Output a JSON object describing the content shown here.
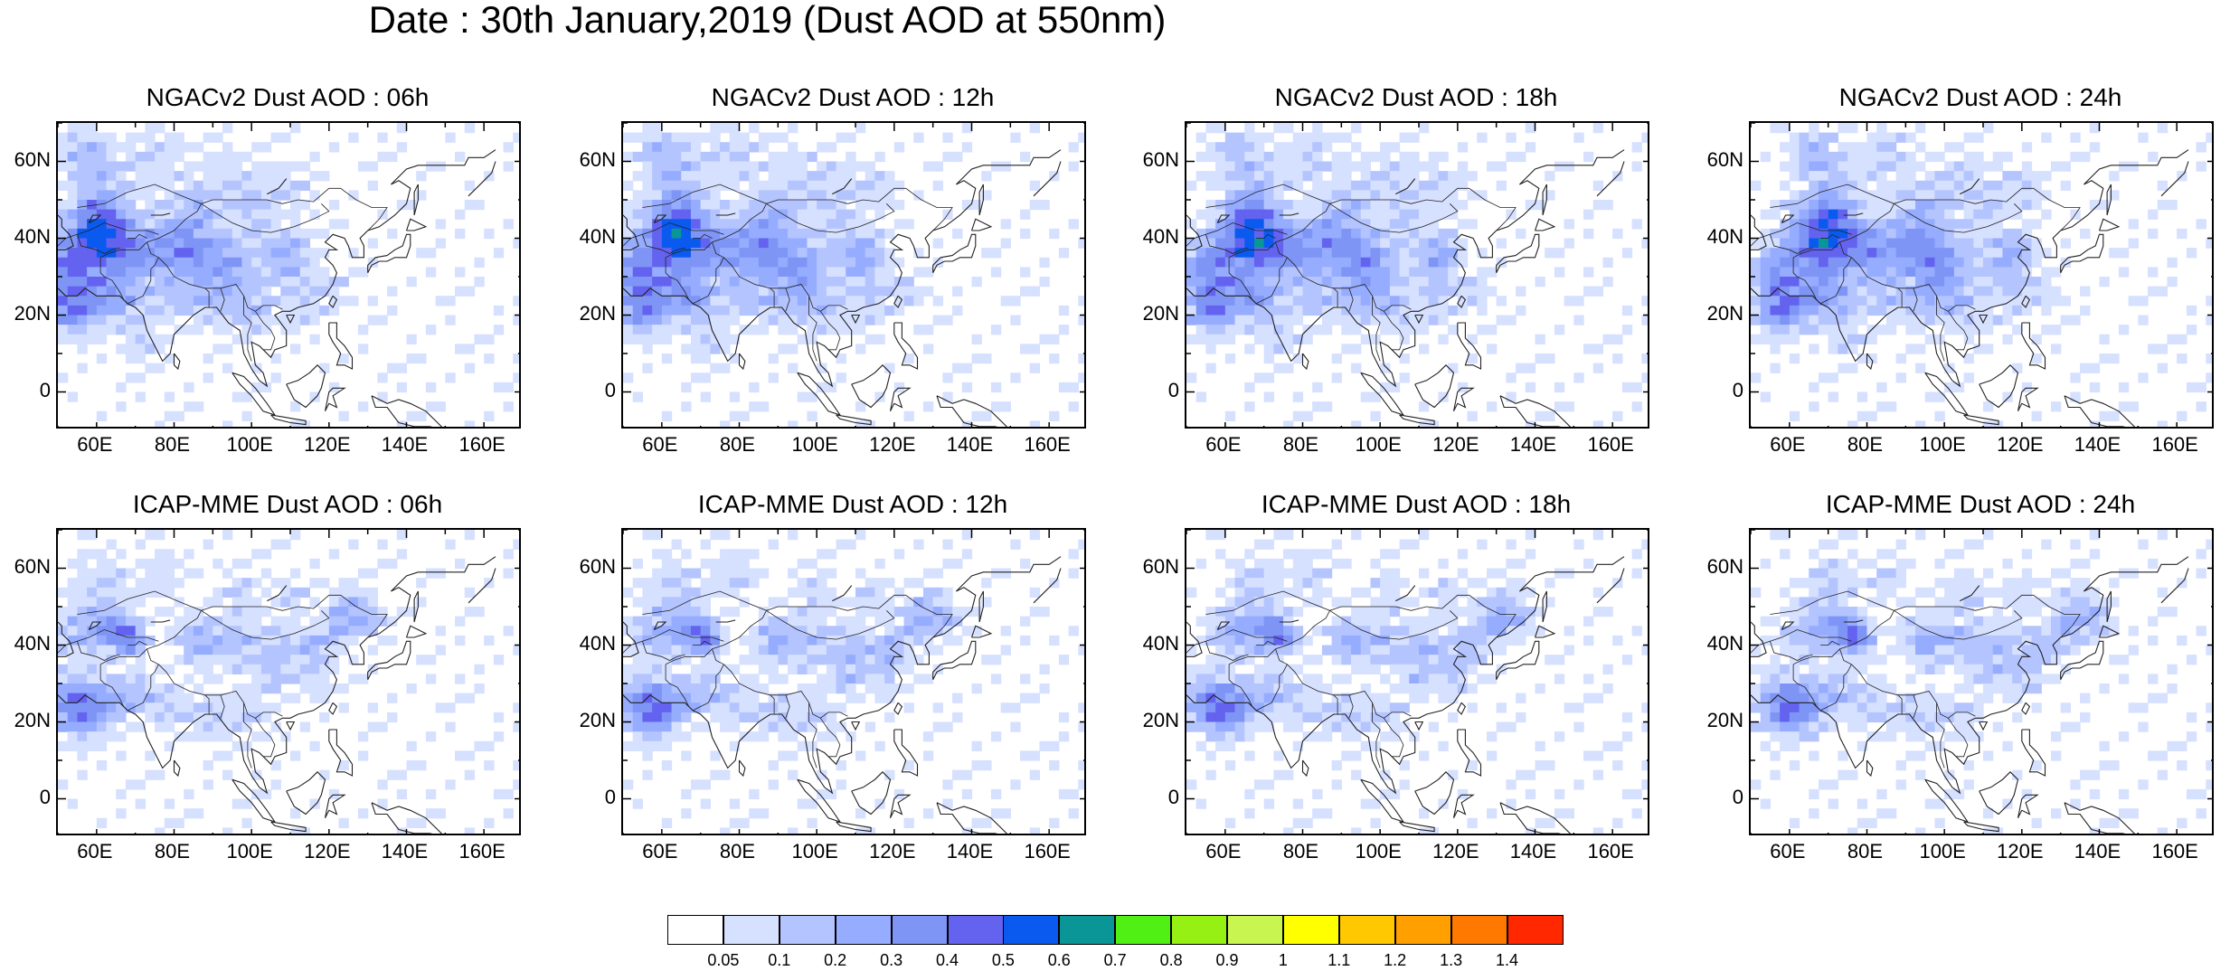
{
  "title": "Date : 30th January,2019 (Dust AOD at 550nm)",
  "map": {
    "lon_range": [
      50,
      170
    ],
    "lat_range": [
      -10,
      70
    ],
    "lat_ticks": [
      "60N",
      "40N",
      "20N",
      "0"
    ],
    "lon_ticks": [
      "60E",
      "80E",
      "100E",
      "120E",
      "140E",
      "160E"
    ]
  },
  "panels": [
    {
      "title": "NGACv2 Dust AOD : 06h",
      "model": "NGACv2",
      "hour": "06h"
    },
    {
      "title": "NGACv2 Dust AOD : 12h",
      "model": "NGACv2",
      "hour": "12h"
    },
    {
      "title": "NGACv2 Dust AOD : 18h",
      "model": "NGACv2",
      "hour": "18h"
    },
    {
      "title": "NGACv2 Dust AOD : 24h",
      "model": "NGACv2",
      "hour": "24h"
    },
    {
      "title": "ICAP-MME Dust AOD : 06h",
      "model": "ICAP-MME",
      "hour": "06h"
    },
    {
      "title": "ICAP-MME Dust AOD : 12h",
      "model": "ICAP-MME",
      "hour": "12h"
    },
    {
      "title": "ICAP-MME Dust AOD : 18h",
      "model": "ICAP-MME",
      "hour": "18h"
    },
    {
      "title": "ICAP-MME Dust AOD : 24h",
      "model": "ICAP-MME",
      "hour": "24h"
    }
  ],
  "colorbar": {
    "labels": [
      "0.05",
      "0.1",
      "0.2",
      "0.3",
      "0.4",
      "0.5",
      "0.6",
      "0.7",
      "0.8",
      "0.9",
      "1",
      "1.1",
      "1.2",
      "1.3",
      "1.4"
    ],
    "colors": [
      "#ffffff",
      "#d6e0ff",
      "#b4c4ff",
      "#96acff",
      "#7f95f5",
      "#6363f0",
      "#0a5af0",
      "#0a9696",
      "#50f014",
      "#96f014",
      "#c8f550",
      "#ffff00",
      "#ffc800",
      "#ffa000",
      "#ff7800",
      "#ff2800"
    ]
  }
}
